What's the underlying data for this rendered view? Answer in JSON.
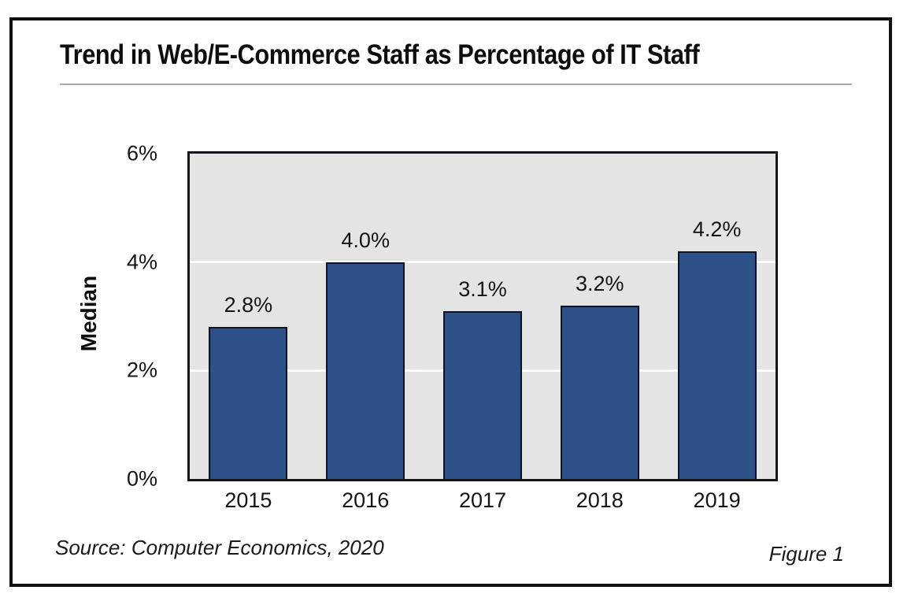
{
  "title": "Trend in Web/E-Commerce Staff as Percentage of IT Staff",
  "chart_data": {
    "type": "bar",
    "title": "Trend in Web/E-Commerce Staff as Percentage of IT Staff",
    "categories": [
      "2015",
      "2016",
      "2017",
      "2018",
      "2019"
    ],
    "values": [
      2.8,
      4.0,
      3.1,
      3.2,
      4.2
    ],
    "value_labels": [
      "2.8%",
      "4.0%",
      "3.1%",
      "3.2%",
      "4.2%"
    ],
    "xlabel": "",
    "ylabel": "Median",
    "ylim": [
      0,
      6
    ],
    "yticks": [
      {
        "label": "0%",
        "value": 0
      },
      {
        "label": "2%",
        "value": 2
      },
      {
        "label": "4%",
        "value": 4
      },
      {
        "label": "6%",
        "value": 6
      }
    ],
    "gridline_values": [
      2,
      4
    ],
    "grid": "horizontal white lines",
    "legend": "none",
    "colors": {
      "bar_fill": "#2d5088",
      "bar_border": "#0e1423",
      "plot_background": "#e4e4e4",
      "gridline": "#ffffff",
      "plot_border": "#151519",
      "frame_border": "#111111",
      "title_rule": "#aaaaaa"
    }
  },
  "footer": {
    "source": "Source: Computer Economics, 2020",
    "figure_label": "Figure 1"
  }
}
